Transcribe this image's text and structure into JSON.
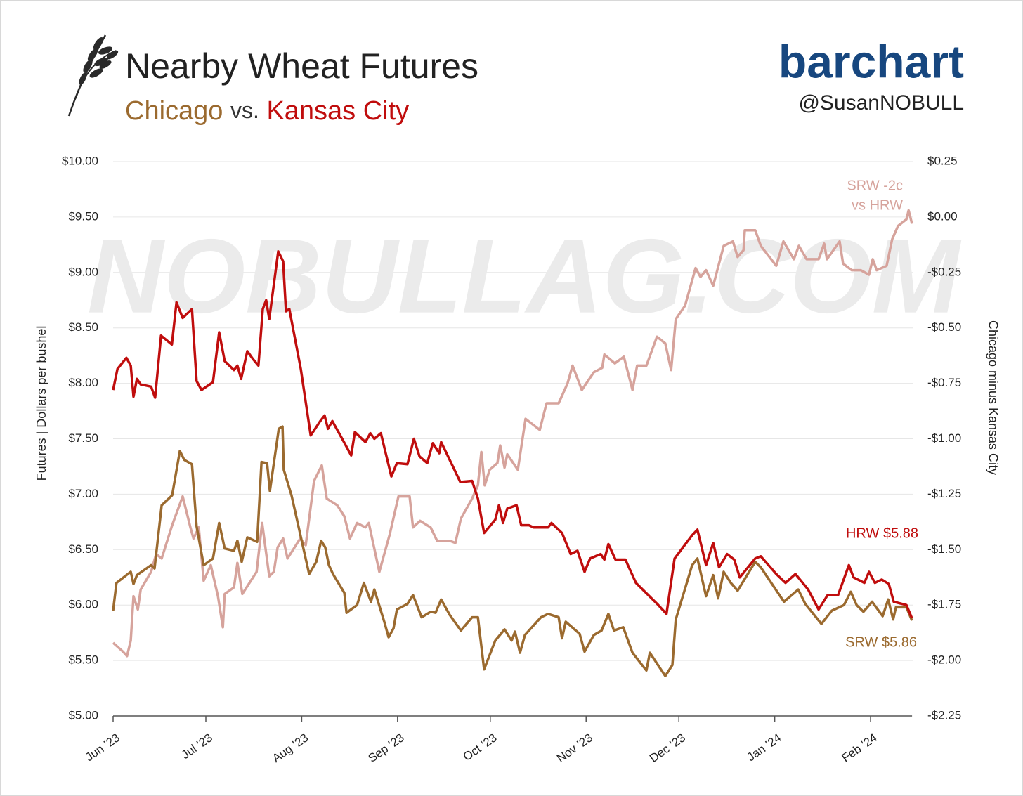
{
  "chart_data": {
    "type": "line",
    "title": "Nearby Wheat Futures",
    "subtitle": [
      "Chicago",
      "vs.",
      "Kansas City"
    ],
    "brand": "barchart",
    "handle": "@SusanNOBULL",
    "watermark": "NOBULLAG.COM",
    "ylabel": "Futures | Dollars per bushel",
    "y2label": "Chicago minus Kansas City",
    "grid": true,
    "xlim": [
      0,
      258.4
    ],
    "xticks": [
      {
        "value": 0,
        "label": "Jun ’23"
      },
      {
        "value": 30,
        "label": "Jul ’23"
      },
      {
        "value": 61,
        "label": "Aug ’23"
      },
      {
        "value": 92,
        "label": "Sep ’23"
      },
      {
        "value": 122,
        "label": "Oct ’23"
      },
      {
        "value": 153,
        "label": "Nov ’23"
      },
      {
        "value": 183,
        "label": "Dec ’23"
      },
      {
        "value": 214,
        "label": "Jan ’24"
      },
      {
        "value": 245,
        "label": "Feb ’24"
      }
    ],
    "ylim": [
      5,
      10
    ],
    "yticks": [
      {
        "value": 5,
        "label": "$5.00"
      },
      {
        "value": 5.5,
        "label": "$5.50"
      },
      {
        "value": 6,
        "label": "$6.00"
      },
      {
        "value": 6.5,
        "label": "$6.50"
      },
      {
        "value": 7,
        "label": "$7.00"
      },
      {
        "value": 7.5,
        "label": "$7.50"
      },
      {
        "value": 8,
        "label": "$8.00"
      },
      {
        "value": 8.5,
        "label": "$8.50"
      },
      {
        "value": 9,
        "label": "$9.00"
      },
      {
        "value": 9.5,
        "label": "$9.50"
      },
      {
        "value": 10,
        "label": "$10.00"
      }
    ],
    "y2lim": [
      -2.25,
      0.25
    ],
    "y2ticks": [
      {
        "value": -2.25,
        "label": "-$2.25"
      },
      {
        "value": -2,
        "label": "-$2.00"
      },
      {
        "value": -1.75,
        "label": "-$1.75"
      },
      {
        "value": -1.5,
        "label": "-$1.50"
      },
      {
        "value": -1.25,
        "label": "-$1.25"
      },
      {
        "value": -1,
        "label": "-$1.00"
      },
      {
        "value": -0.75,
        "label": "-$0.75"
      },
      {
        "value": -0.5,
        "label": "-$0.50"
      },
      {
        "value": -0.25,
        "label": "-$0.25"
      },
      {
        "value": 0,
        "label": "$0.00"
      },
      {
        "value": 0.25,
        "label": "$0.25"
      }
    ],
    "series": [
      {
        "label": [
          "HRW $5.88"
        ],
        "color": "#c00d0d",
        "axis": "y",
        "x": [
          0,
          1.4,
          4.3,
          5.7,
          6.6,
          7.7,
          8.9,
          12.3,
          13.6,
          15.5,
          19,
          20.5,
          22.5,
          25.5,
          27,
          28.6,
          32.3,
          34.3,
          36.1,
          39.1,
          40.2,
          41.4,
          43.4,
          45.2,
          47,
          48.4,
          49.5,
          50.5,
          53.4,
          55,
          55.9,
          57,
          60.7,
          63.9,
          67,
          68.4,
          69.5,
          70.9,
          74.3,
          77,
          78.2,
          81.6,
          83.2,
          84.5,
          86.6,
          90,
          91.8,
          95.2,
          97.3,
          99.1,
          101.6,
          103.4,
          105.5,
          106.1,
          112.3,
          116.1,
          118,
          120,
          123.6,
          124.8,
          126.1,
          127.5,
          130.5,
          132,
          134.5,
          136,
          140.7,
          141.8,
          145.2,
          148,
          150.2,
          152.5,
          154.3,
          157.7,
          158.9,
          160.2,
          162.5,
          165.7,
          169.1,
          176,
          179,
          181.6,
          187.3,
          189,
          191.8,
          194.1,
          196,
          198.6,
          200.9,
          202.7,
          207.7,
          209.5,
          214.5,
          217.5,
          220.7,
          224.8,
          228.2,
          231.1,
          234.5,
          238,
          239.5,
          243,
          244.5,
          246.4,
          248.6,
          250.9,
          252.5,
          256.6,
          258.4
        ],
        "values": [
          7.94,
          8.13,
          8.23,
          8.16,
          7.88,
          8.04,
          7.99,
          7.97,
          7.87,
          8.43,
          8.35,
          8.73,
          8.59,
          8.67,
          8.02,
          7.94,
          8.01,
          8.46,
          8.2,
          8.12,
          8.16,
          8.04,
          8.29,
          8.22,
          8.16,
          8.67,
          8.75,
          8.58,
          9.19,
          9.1,
          8.65,
          8.67,
          8.13,
          7.53,
          7.66,
          7.71,
          7.59,
          7.66,
          7.49,
          7.35,
          7.56,
          7.47,
          7.55,
          7.5,
          7.55,
          7.16,
          7.28,
          7.27,
          7.5,
          7.34,
          7.28,
          7.46,
          7.37,
          7.47,
          7.11,
          7.12,
          6.96,
          6.65,
          6.77,
          6.9,
          6.74,
          6.87,
          6.9,
          6.72,
          6.72,
          6.7,
          6.7,
          6.74,
          6.65,
          6.46,
          6.49,
          6.3,
          6.42,
          6.46,
          6.41,
          6.55,
          6.41,
          6.41,
          6.2,
          6.01,
          5.92,
          6.42,
          6.63,
          6.68,
          6.36,
          6.56,
          6.34,
          6.46,
          6.41,
          6.25,
          6.42,
          6.44,
          6.28,
          6.2,
          6.28,
          6.14,
          5.96,
          6.09,
          6.09,
          6.36,
          6.25,
          6.2,
          6.3,
          6.2,
          6.23,
          6.19,
          6.03,
          6,
          5.88
        ]
      },
      {
        "label": [
          "SRW $5.86"
        ],
        "color": "#9b6a2f",
        "axis": "y",
        "x": [
          0,
          1.1,
          4.3,
          5.7,
          6.6,
          7.7,
          12.3,
          13.4,
          15.7,
          19.1,
          21.6,
          23,
          25.5,
          27,
          29.3,
          32.3,
          34.3,
          36.1,
          39.1,
          40.2,
          41.6,
          43.4,
          46.6,
          48,
          49.8,
          50.7,
          53.6,
          54.8,
          55.2,
          57.7,
          63.4,
          65.7,
          67.3,
          68.6,
          69.8,
          71.1,
          74.8,
          75.5,
          78.9,
          81.1,
          83.4,
          84.5,
          87.7,
          89.1,
          90.7,
          91.8,
          95.2,
          97,
          99.8,
          102.7,
          104.3,
          106.1,
          108.9,
          112.5,
          116.1,
          118,
          120,
          123.6,
          126.6,
          128.9,
          130,
          131.6,
          133.2,
          138.4,
          140.7,
          144.1,
          145.2,
          146.4,
          150.9,
          152.5,
          155.5,
          158,
          160.2,
          162,
          165,
          168,
          172.5,
          173.6,
          178.6,
          180.9,
          182,
          187.3,
          189,
          191.8,
          194.1,
          195.7,
          197.5,
          199.8,
          202,
          207.7,
          209.5,
          217,
          221.6,
          223.9,
          229.1,
          232.5,
          236.4,
          238.6,
          240.5,
          242.7,
          245.5,
          248.9,
          250.7,
          252.3,
          253.2,
          256.6,
          258.4
        ],
        "values": [
          5.95,
          6.2,
          6.27,
          6.3,
          6.19,
          6.27,
          6.36,
          6.33,
          6.9,
          6.99,
          7.39,
          7.31,
          7.27,
          6.71,
          6.36,
          6.42,
          6.74,
          6.51,
          6.49,
          6.58,
          6.39,
          6.61,
          6.57,
          7.29,
          7.28,
          7.03,
          7.59,
          7.61,
          7.22,
          6.99,
          6.28,
          6.39,
          6.58,
          6.52,
          6.36,
          6.28,
          6.11,
          5.93,
          6,
          6.2,
          6.03,
          6.14,
          5.85,
          5.71,
          5.79,
          5.96,
          6.01,
          6.09,
          5.89,
          5.94,
          5.93,
          6.05,
          5.91,
          5.77,
          5.89,
          5.89,
          5.42,
          5.68,
          5.78,
          5.68,
          5.76,
          5.57,
          5.73,
          5.89,
          5.92,
          5.89,
          5.7,
          5.85,
          5.74,
          5.58,
          5.73,
          5.77,
          5.92,
          5.77,
          5.8,
          5.57,
          5.41,
          5.57,
          5.36,
          5.46,
          5.87,
          6.36,
          6.42,
          6.08,
          6.27,
          6.06,
          6.3,
          6.2,
          6.13,
          6.39,
          6.34,
          6.03,
          6.14,
          6.01,
          5.83,
          5.95,
          6,
          6.12,
          6,
          5.94,
          6.03,
          5.9,
          6.05,
          5.87,
          5.98,
          5.98,
          5.86
        ]
      },
      {
        "label": [
          "SRW -2c",
          "vs HRW"
        ],
        "color": "#d6a39c",
        "axis": "y2",
        "x": [
          0,
          3.2,
          4.5,
          5.7,
          6.6,
          8,
          8.9,
          12.3,
          13.9,
          15.7,
          19.1,
          22.5,
          25,
          26,
          27.7,
          29.3,
          31.6,
          33.9,
          35.5,
          36.1,
          39.1,
          40.2,
          41.8,
          46.4,
          48.2,
          50.5,
          52,
          53.2,
          55,
          56.4,
          60.5,
          62.3,
          65,
          67.5,
          69.1,
          72.5,
          74.8,
          76.6,
          78.9,
          81.6,
          82.7,
          86.1,
          89.5,
          92.3,
          95.9,
          97,
          99.3,
          102.7,
          104.8,
          108.9,
          110.7,
          112.5,
          116.1,
          118,
          119.1,
          120.2,
          121.8,
          124.3,
          125.2,
          126.6,
          127.5,
          130.9,
          133.4,
          138,
          140.2,
          144.1,
          147,
          148.6,
          151.6,
          155.5,
          158.2,
          158.9,
          162.3,
          165.2,
          168,
          169.5,
          172.5,
          175.9,
          178.6,
          180.5,
          182,
          185,
          188.4,
          190,
          191.8,
          194.1,
          197.5,
          200.5,
          202,
          203.9,
          204.3,
          207.7,
          209.5,
          214.5,
          216.8,
          220.2,
          221.8,
          224.3,
          228.2,
          230,
          230.9,
          235,
          236.1,
          238.9,
          241.8,
          244.5,
          245.7,
          247,
          250.2,
          252,
          253.9,
          256.6,
          257.3,
          258.4
        ],
        "values": [
          -1.92,
          -1.96,
          -1.98,
          -1.91,
          -1.71,
          -1.77,
          -1.68,
          -1.6,
          -1.52,
          -1.54,
          -1.39,
          -1.26,
          -1.4,
          -1.45,
          -1.4,
          -1.64,
          -1.57,
          -1.71,
          -1.85,
          -1.7,
          -1.67,
          -1.56,
          -1.7,
          -1.6,
          -1.38,
          -1.62,
          -1.6,
          -1.49,
          -1.45,
          -1.54,
          -1.45,
          -1.48,
          -1.19,
          -1.12,
          -1.27,
          -1.3,
          -1.35,
          -1.45,
          -1.38,
          -1.4,
          -1.38,
          -1.6,
          -1.43,
          -1.26,
          -1.26,
          -1.4,
          -1.37,
          -1.4,
          -1.46,
          -1.46,
          -1.47,
          -1.36,
          -1.27,
          -1.21,
          -1.06,
          -1.21,
          -1.14,
          -1.11,
          -1.03,
          -1.13,
          -1.07,
          -1.14,
          -0.91,
          -0.96,
          -0.84,
          -0.84,
          -0.75,
          -0.67,
          -0.78,
          -0.7,
          -0.68,
          -0.62,
          -0.66,
          -0.63,
          -0.78,
          -0.67,
          -0.67,
          -0.54,
          -0.57,
          -0.69,
          -0.46,
          -0.4,
          -0.23,
          -0.27,
          -0.24,
          -0.31,
          -0.13,
          -0.11,
          -0.18,
          -0.15,
          -0.06,
          -0.06,
          -0.13,
          -0.22,
          -0.11,
          -0.19,
          -0.13,
          -0.19,
          -0.19,
          -0.12,
          -0.19,
          -0.11,
          -0.21,
          -0.24,
          -0.24,
          -0.26,
          -0.19,
          -0.24,
          -0.22,
          -0.1,
          -0.04,
          -0.01,
          0.03,
          -0.03
        ]
      }
    ]
  }
}
